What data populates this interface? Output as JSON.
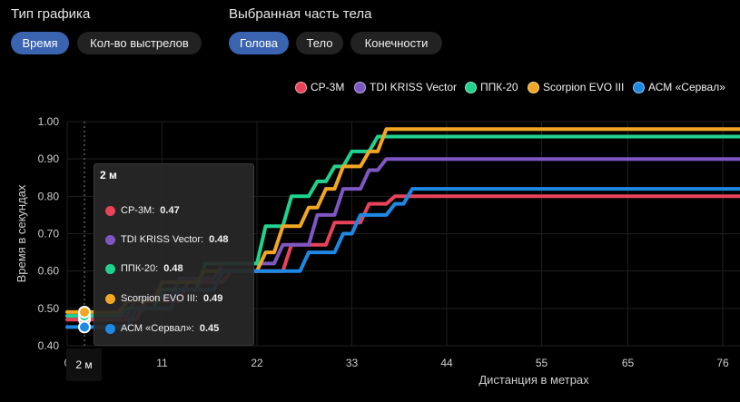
{
  "controls": {
    "chart_type_label": "Тип графика",
    "chart_type_options": [
      "Время",
      "Кол-во выстрелов"
    ],
    "body_part_label": "Выбранная часть тела",
    "body_part_options": [
      "Голова",
      "Тело",
      "Конечности"
    ]
  },
  "colors": {
    "background": "#000000",
    "accent": "#3a63b0",
    "grid": "#1f1f1f",
    "axis_text": "#cfcfcf"
  },
  "tooltip": {
    "title": "2 м",
    "rows": [
      {
        "name": "СР-3М:",
        "value": "0.47"
      },
      {
        "name": "TDI KRISS Vector:",
        "value": "0.48"
      },
      {
        "name": "ППК-20:",
        "value": "0.48"
      },
      {
        "name": "Scorpion EVO III:",
        "value": "0.49"
      },
      {
        "name": "АСМ «Сервал»:",
        "value": "0.45"
      }
    ]
  },
  "x_badge": "2 м",
  "chart_data": {
    "type": "line",
    "step": true,
    "title": "",
    "xlabel": "Дистанция в метрах",
    "ylabel": "Время в секундах",
    "xlim": [
      0,
      78
    ],
    "ylim": [
      0.4,
      1.0
    ],
    "x_ticks": [
      0,
      11,
      22,
      33,
      44,
      55,
      65,
      76
    ],
    "x_tick_labels": [
      "0",
      "11",
      "22",
      "33",
      "44",
      "55",
      "65",
      "76"
    ],
    "y_ticks": [
      0.4,
      0.5,
      0.6,
      0.7,
      0.8,
      0.9,
      1.0
    ],
    "y_tick_labels": [
      "0.40",
      "0.50",
      "0.60",
      "0.70",
      "0.80",
      "0.90",
      "1.00"
    ],
    "grid": true,
    "legend_position": "top-right",
    "highlight_x": 2,
    "series": [
      {
        "name": "СР-3М",
        "color": "#e8435a",
        "points": [
          [
            0,
            0.47
          ],
          [
            8,
            0.47
          ],
          [
            9,
            0.52
          ],
          [
            13,
            0.52
          ],
          [
            14,
            0.57
          ],
          [
            18,
            0.57
          ],
          [
            19,
            0.6
          ],
          [
            25,
            0.6
          ],
          [
            26,
            0.67
          ],
          [
            30,
            0.67
          ],
          [
            31,
            0.73
          ],
          [
            34,
            0.73
          ],
          [
            35,
            0.78
          ],
          [
            37,
            0.78
          ],
          [
            38,
            0.8
          ],
          [
            78,
            0.8
          ]
        ]
      },
      {
        "name": "TDI KRISS Vector",
        "color": "#7e57c2",
        "points": [
          [
            0,
            0.48
          ],
          [
            7,
            0.48
          ],
          [
            8,
            0.53
          ],
          [
            12,
            0.53
          ],
          [
            13,
            0.58
          ],
          [
            17,
            0.58
          ],
          [
            18,
            0.62
          ],
          [
            24,
            0.62
          ],
          [
            25,
            0.67
          ],
          [
            28,
            0.67
          ],
          [
            29,
            0.75
          ],
          [
            31,
            0.75
          ],
          [
            32,
            0.82
          ],
          [
            34,
            0.82
          ],
          [
            35,
            0.87
          ],
          [
            36,
            0.87
          ],
          [
            37,
            0.9
          ],
          [
            78,
            0.9
          ]
        ]
      },
      {
        "name": "ППК-20",
        "color": "#1fd28e",
        "points": [
          [
            0,
            0.48
          ],
          [
            6,
            0.48
          ],
          [
            7,
            0.5
          ],
          [
            10,
            0.5
          ],
          [
            11,
            0.55
          ],
          [
            15,
            0.55
          ],
          [
            16,
            0.62
          ],
          [
            22,
            0.62
          ],
          [
            23,
            0.72
          ],
          [
            25,
            0.72
          ],
          [
            26,
            0.8
          ],
          [
            28,
            0.8
          ],
          [
            29,
            0.84
          ],
          [
            30,
            0.84
          ],
          [
            31,
            0.88
          ],
          [
            32,
            0.88
          ],
          [
            33,
            0.92
          ],
          [
            35,
            0.92
          ],
          [
            36,
            0.96
          ],
          [
            78,
            0.96
          ]
        ]
      },
      {
        "name": "Scorpion EVO III",
        "color": "#f2a724",
        "points": [
          [
            0,
            0.49
          ],
          [
            6,
            0.49
          ],
          [
            7,
            0.52
          ],
          [
            10,
            0.52
          ],
          [
            11,
            0.57
          ],
          [
            15,
            0.57
          ],
          [
            16,
            0.6
          ],
          [
            22,
            0.6
          ],
          [
            23,
            0.65
          ],
          [
            24,
            0.65
          ],
          [
            25,
            0.72
          ],
          [
            27,
            0.72
          ],
          [
            28,
            0.77
          ],
          [
            29,
            0.77
          ],
          [
            30,
            0.82
          ],
          [
            31,
            0.82
          ],
          [
            32,
            0.88
          ],
          [
            34,
            0.88
          ],
          [
            35,
            0.92
          ],
          [
            36,
            0.92
          ],
          [
            37,
            0.98
          ],
          [
            78,
            0.98
          ]
        ]
      },
      {
        "name": "АСМ «Сервал»",
        "color": "#1e88e5",
        "points": [
          [
            0,
            0.45
          ],
          [
            7,
            0.45
          ],
          [
            8,
            0.5
          ],
          [
            12,
            0.5
          ],
          [
            13,
            0.55
          ],
          [
            17,
            0.55
          ],
          [
            18,
            0.6
          ],
          [
            27,
            0.6
          ],
          [
            28,
            0.65
          ],
          [
            31,
            0.65
          ],
          [
            32,
            0.7
          ],
          [
            33,
            0.7
          ],
          [
            34,
            0.75
          ],
          [
            37,
            0.75
          ],
          [
            38,
            0.78
          ],
          [
            39,
            0.78
          ],
          [
            40,
            0.82
          ],
          [
            78,
            0.82
          ]
        ]
      }
    ]
  }
}
